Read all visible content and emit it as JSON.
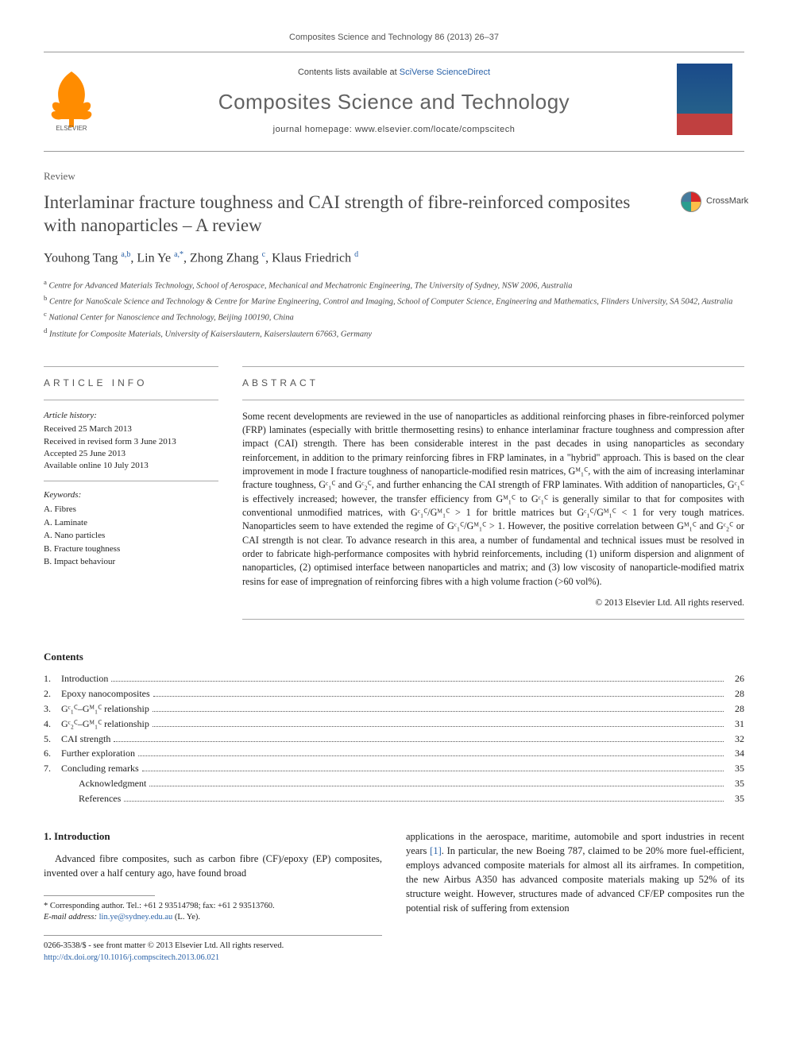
{
  "top_citation": "Composites Science and Technology 86 (2013) 26–37",
  "header": {
    "contents_prefix": "Contents lists available at ",
    "contents_link": "SciVerse ScienceDirect",
    "journal_name": "Composites Science and Technology",
    "homepage_prefix": "journal homepage: ",
    "homepage_url": "www.elsevier.com/locate/compscitech"
  },
  "article_type": "Review",
  "title": "Interlaminar fracture toughness and CAI strength of fibre-reinforced composites with nanoparticles – A review",
  "crossmark_label": "CrossMark",
  "authors_html": "Youhong Tang <sup>a,b</sup>, Lin Ye <sup>a,*</sup>, Zhong Zhang <sup>c</sup>, Klaus Friedrich <sup>d</sup>",
  "affiliations": [
    "a Centre for Advanced Materials Technology, School of Aerospace, Mechanical and Mechatronic Engineering, The University of Sydney, NSW 2006, Australia",
    "b Centre for NanoScale Science and Technology & Centre for Marine Engineering, Control and Imaging, School of Computer Science, Engineering and Mathematics, Flinders University, SA 5042, Australia",
    "c National Center for Nanoscience and Technology, Beijing 100190, China",
    "d Institute for Composite Materials, University of Kaiserslautern, Kaiserslautern 67663, Germany"
  ],
  "info": {
    "heading": "ARTICLE INFO",
    "history_label": "Article history:",
    "history": [
      "Received 25 March 2013",
      "Received in revised form 3 June 2013",
      "Accepted 25 June 2013",
      "Available online 10 July 2013"
    ],
    "keywords_label": "Keywords:",
    "keywords": [
      "A. Fibres",
      "A. Laminate",
      "A. Nano particles",
      "B. Fracture toughness",
      "B. Impact behaviour"
    ]
  },
  "abstract": {
    "heading": "ABSTRACT",
    "text": "Some recent developments are reviewed in the use of nanoparticles as additional reinforcing phases in fibre-reinforced polymer (FRP) laminates (especially with brittle thermosetting resins) to enhance interlaminar fracture toughness and compression after impact (CAI) strength. There has been considerable interest in the past decades in using nanoparticles as secondary reinforcement, in addition to the primary reinforcing fibres in FRP laminates, in a \"hybrid\" approach. This is based on the clear improvement in mode I fracture toughness of nanoparticle-modified resin matrices, Gᴹ₁ꟲ, with the aim of increasing interlaminar fracture toughness, Gᶜ₁ꟲ and Gᶜ₂ꟲ, and further enhancing the CAI strength of FRP laminates. With addition of nanoparticles, Gᶜ₁ꟲ is effectively increased; however, the transfer efficiency from Gᴹ₁ꟲ to Gᶜ₁ꟲ is generally similar to that for composites with conventional unmodified matrices, with Gᶜ₁ꟲ/Gᴹ₁ꟲ > 1 for brittle matrices but Gᶜ₁ꟲ/Gᴹ₁ꟲ < 1 for very tough matrices. Nanoparticles seem to have extended the regime of Gᶜ₁ꟲ/Gᴹ₁ꟲ > 1. However, the positive correlation between Gᴹ₁ꟲ and Gᶜ₂ꟲ or CAI strength is not clear. To advance research in this area, a number of fundamental and technical issues must be resolved in order to fabricate high-performance composites with hybrid reinforcements, including (1) uniform dispersion and alignment of nanoparticles, (2) optimised interface between nanoparticles and matrix; and (3) low viscosity of nanoparticle-modified matrix resins for ease of impregnation of reinforcing fibres with a high volume fraction (>60 vol%).",
    "copyright": "© 2013 Elsevier Ltd. All rights reserved."
  },
  "contents": {
    "heading": "Contents",
    "items": [
      {
        "num": "1.",
        "label": "Introduction",
        "page": "26",
        "indent": false
      },
      {
        "num": "2.",
        "label": "Epoxy nanocomposites",
        "page": "28",
        "indent": false
      },
      {
        "num": "3.",
        "label": "Gᶜ₁ꟲ–Gᴹ₁ꟲ relationship",
        "page": "28",
        "indent": false
      },
      {
        "num": "4.",
        "label": "Gᶜ₂ꟲ–Gᴹ₁ꟲ relationship",
        "page": "31",
        "indent": false
      },
      {
        "num": "5.",
        "label": "CAI strength",
        "page": "32",
        "indent": false
      },
      {
        "num": "6.",
        "label": "Further exploration",
        "page": "34",
        "indent": false
      },
      {
        "num": "7.",
        "label": "Concluding remarks",
        "page": "35",
        "indent": false
      },
      {
        "num": "",
        "label": "Acknowledgment",
        "page": "35",
        "indent": true
      },
      {
        "num": "",
        "label": "References",
        "page": "35",
        "indent": true
      }
    ]
  },
  "body": {
    "section_heading": "1. Introduction",
    "left_para": "Advanced fibre composites, such as carbon fibre (CF)/epoxy (EP) composites, invented over a half century ago, have found broad",
    "right_para_1": "applications in the aerospace, maritime, automobile and sport industries in recent years ",
    "right_ref": "[1]",
    "right_para_2": ". In particular, the new Boeing 787, claimed to be 20% more fuel-efficient, employs advanced composite materials for almost all its airframes. In competition, the new Airbus A350 has advanced composite materials making up 52% of its structure weight. However, structures made of advanced CF/EP composites run the potential risk of suffering from extension"
  },
  "footnote": {
    "corr": "* Corresponding author. Tel.: +61 2 93514798; fax: +61 2 93513760.",
    "email_label": "E-mail address: ",
    "email": "lin.ye@sydney.edu.au",
    "email_suffix": " (L. Ye)."
  },
  "bottom": {
    "line1": "0266-3538/$ - see front matter © 2013 Elsevier Ltd. All rights reserved.",
    "doi": "http://dx.doi.org/10.1016/j.compscitech.2013.06.021"
  },
  "colors": {
    "link": "#2a62a8",
    "text": "#222222",
    "rule": "#aaaaaa"
  }
}
